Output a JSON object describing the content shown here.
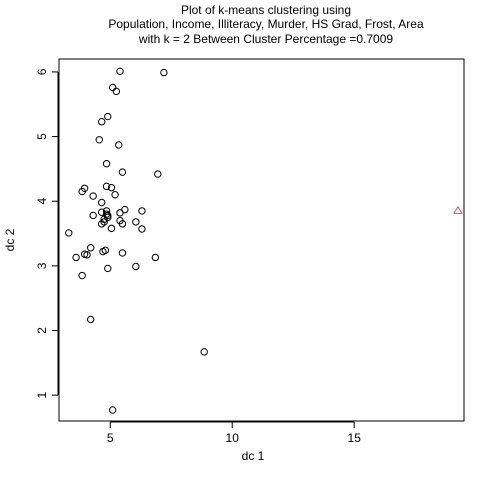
{
  "chart_data": {
    "type": "scatter",
    "title_lines": [
      "Plot of k-means clustering using",
      "Population, Income, Illiteracy, Murder, HS Grad, Frost, Area",
      "with  k = 2 Between Cluster Percentage =0.7009"
    ],
    "xlabel": "dc 1",
    "ylabel": "dc 2",
    "xlim": [
      2.9,
      19.5
    ],
    "ylim": [
      0.6,
      6.2
    ],
    "xticks": [
      5,
      10,
      15
    ],
    "yticks": [
      1,
      2,
      3,
      4,
      5,
      6
    ],
    "grid": false,
    "legend": "none",
    "colors": {
      "cluster_1": "#000000",
      "cluster_2": "#DF536B"
    },
    "series": [
      {
        "name": "cluster 1",
        "marker": "circle",
        "points": [
          [
            5.4,
            6.01
          ],
          [
            7.2,
            5.99
          ],
          [
            5.1,
            5.76
          ],
          [
            5.25,
            5.7
          ],
          [
            4.9,
            5.31
          ],
          [
            4.65,
            5.23
          ],
          [
            4.55,
            4.95
          ],
          [
            5.35,
            4.87
          ],
          [
            4.85,
            4.58
          ],
          [
            5.5,
            4.45
          ],
          [
            6.95,
            4.42
          ],
          [
            4.85,
            4.23
          ],
          [
            5.05,
            4.21
          ],
          [
            3.95,
            4.2
          ],
          [
            3.85,
            4.15
          ],
          [
            4.3,
            4.08
          ],
          [
            5.2,
            4.1
          ],
          [
            4.65,
            3.98
          ],
          [
            4.85,
            3.85
          ],
          [
            5.6,
            3.87
          ],
          [
            6.3,
            3.85
          ],
          [
            4.65,
            3.83
          ],
          [
            4.85,
            3.8
          ],
          [
            5.4,
            3.82
          ],
          [
            4.3,
            3.78
          ],
          [
            4.9,
            3.78
          ],
          [
            4.75,
            3.72
          ],
          [
            4.9,
            3.75
          ],
          [
            5.4,
            3.7
          ],
          [
            6.05,
            3.68
          ],
          [
            4.75,
            3.68
          ],
          [
            4.65,
            3.65
          ],
          [
            5.5,
            3.65
          ],
          [
            5.05,
            3.58
          ],
          [
            6.3,
            3.57
          ],
          [
            3.3,
            3.51
          ],
          [
            4.2,
            3.28
          ],
          [
            4.8,
            3.24
          ],
          [
            4.7,
            3.22
          ],
          [
            5.5,
            3.2
          ],
          [
            4.05,
            3.17
          ],
          [
            3.95,
            3.18
          ],
          [
            6.85,
            3.13
          ],
          [
            3.6,
            3.13
          ],
          [
            6.05,
            2.99
          ],
          [
            4.9,
            2.96
          ],
          [
            3.85,
            2.85
          ],
          [
            4.2,
            2.17
          ],
          [
            8.85,
            1.67
          ],
          [
            5.1,
            0.77
          ]
        ]
      },
      {
        "name": "cluster 2",
        "marker": "triangle",
        "points": [
          [
            19.25,
            3.85
          ]
        ]
      }
    ]
  }
}
